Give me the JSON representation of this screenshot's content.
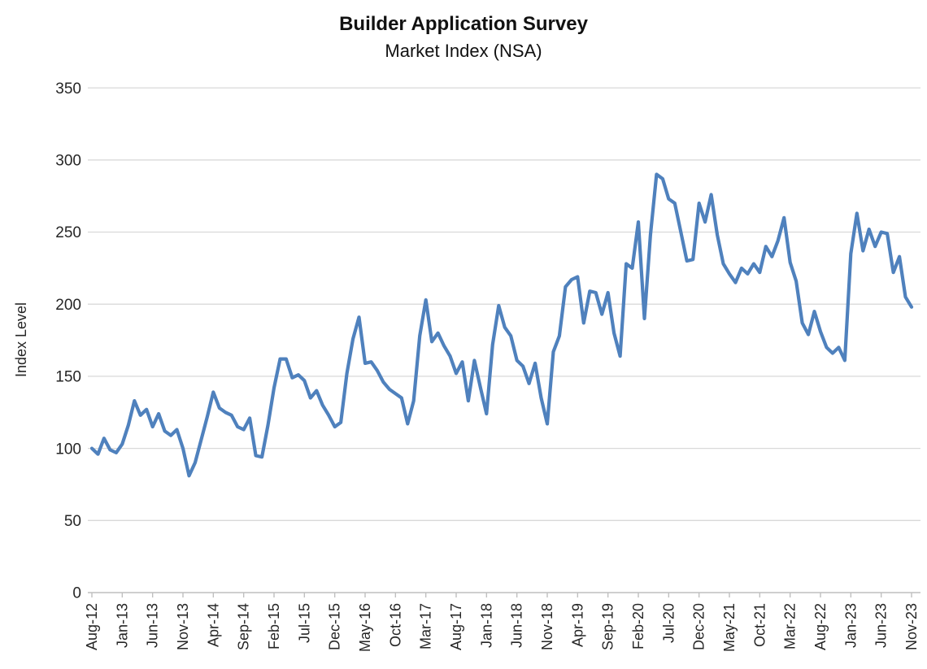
{
  "chart_data": {
    "type": "line",
    "title": "Builder Application Survey",
    "subtitle": "Market Index (NSA)",
    "xlabel": "",
    "ylabel": "Index Level",
    "ylim": [
      0,
      350
    ],
    "ytick_step": 50,
    "yticks": [
      0,
      50,
      100,
      150,
      200,
      250,
      300,
      350
    ],
    "grid": "horizontal-only",
    "legend_position": "none",
    "x_tick_interval": 5,
    "x_tick_labels": [
      "Aug-12",
      "Jan-13",
      "Jun-13",
      "Nov-13",
      "Apr-14",
      "Sep-14",
      "Feb-15",
      "Jul-15",
      "Dec-15",
      "May-16",
      "Oct-16",
      "Mar-17",
      "Aug-17",
      "Jan-18",
      "Jun-18",
      "Nov-18",
      "Apr-19",
      "Sep-19",
      "Feb-20",
      "Jul-20",
      "Dec-20",
      "May-21",
      "Oct-21",
      "Mar-22",
      "Aug-22",
      "Jan-23",
      "Jun-23",
      "Nov-23"
    ],
    "x": [
      "Aug-12",
      "Sep-12",
      "Oct-12",
      "Nov-12",
      "Dec-12",
      "Jan-13",
      "Feb-13",
      "Mar-13",
      "Apr-13",
      "May-13",
      "Jun-13",
      "Jul-13",
      "Aug-13",
      "Sep-13",
      "Oct-13",
      "Nov-13",
      "Dec-13",
      "Jan-14",
      "Feb-14",
      "Mar-14",
      "Apr-14",
      "May-14",
      "Jun-14",
      "Jul-14",
      "Aug-14",
      "Sep-14",
      "Oct-14",
      "Nov-14",
      "Dec-14",
      "Jan-15",
      "Feb-15",
      "Mar-15",
      "Apr-15",
      "May-15",
      "Jun-15",
      "Jul-15",
      "Aug-15",
      "Sep-15",
      "Oct-15",
      "Nov-15",
      "Dec-15",
      "Jan-16",
      "Feb-16",
      "Mar-16",
      "Apr-16",
      "May-16",
      "Jun-16",
      "Jul-16",
      "Aug-16",
      "Sep-16",
      "Oct-16",
      "Nov-16",
      "Dec-16",
      "Jan-17",
      "Feb-17",
      "Mar-17",
      "Apr-17",
      "May-17",
      "Jun-17",
      "Jul-17",
      "Aug-17",
      "Sep-17",
      "Oct-17",
      "Nov-17",
      "Dec-17",
      "Jan-18",
      "Feb-18",
      "Mar-18",
      "Apr-18",
      "May-18",
      "Jun-18",
      "Jul-18",
      "Aug-18",
      "Sep-18",
      "Oct-18",
      "Nov-18",
      "Dec-18",
      "Jan-19",
      "Feb-19",
      "Mar-19",
      "Apr-19",
      "May-19",
      "Jun-19",
      "Jul-19",
      "Aug-19",
      "Sep-19",
      "Oct-19",
      "Nov-19",
      "Dec-19",
      "Jan-20",
      "Feb-20",
      "Mar-20",
      "Apr-20",
      "May-20",
      "Jun-20",
      "Jul-20",
      "Aug-20",
      "Sep-20",
      "Oct-20",
      "Nov-20",
      "Dec-20",
      "Jan-21",
      "Feb-21",
      "Mar-21",
      "Apr-21",
      "May-21",
      "Jun-21",
      "Jul-21",
      "Aug-21",
      "Sep-21",
      "Oct-21",
      "Nov-21",
      "Dec-21",
      "Jan-22",
      "Feb-22",
      "Mar-22",
      "Apr-22",
      "May-22",
      "Jun-22",
      "Jul-22",
      "Aug-22",
      "Sep-22",
      "Oct-22",
      "Nov-22",
      "Dec-22",
      "Jan-23",
      "Feb-23",
      "Mar-23",
      "Apr-23",
      "May-23",
      "Jun-23",
      "Jul-23",
      "Aug-23",
      "Sep-23",
      "Oct-23",
      "Nov-23"
    ],
    "series": [
      {
        "name": "Market Index (NSA)",
        "values": [
          100,
          96,
          107,
          99,
          97,
          103,
          116,
          133,
          123,
          127,
          115,
          124,
          112,
          109,
          113,
          100,
          81,
          90,
          106,
          122,
          139,
          128,
          125,
          123,
          115,
          113,
          121,
          95,
          94,
          116,
          142,
          162,
          162,
          149,
          151,
          147,
          135,
          140,
          130,
          123,
          115,
          118,
          152,
          176,
          191,
          159,
          160,
          154,
          146,
          141,
          138,
          135,
          117,
          133,
          178,
          203,
          174,
          180,
          171,
          164,
          152,
          160,
          133,
          161,
          142,
          124,
          172,
          199,
          184,
          178,
          161,
          157,
          145,
          159,
          135,
          117,
          167,
          178,
          212,
          217,
          219,
          187,
          209,
          208,
          193,
          208,
          180,
          164,
          228,
          225,
          257,
          190,
          248,
          290,
          287,
          273,
          270,
          250,
          230,
          231,
          270,
          257,
          276,
          248,
          228,
          221,
          215,
          225,
          221,
          228,
          222,
          240,
          233,
          244,
          260,
          229,
          216,
          187,
          179,
          195,
          181,
          170,
          166,
          170,
          161,
          235,
          263,
          237,
          252,
          240,
          250,
          249,
          222,
          233,
          205,
          198
        ]
      }
    ]
  },
  "colors": {
    "line": "#4F81BD",
    "gridline": "#D9D9D9",
    "axis": "#BFBFBF",
    "text": "#262626",
    "title_text": "#111111",
    "background": "#FFFFFF"
  }
}
